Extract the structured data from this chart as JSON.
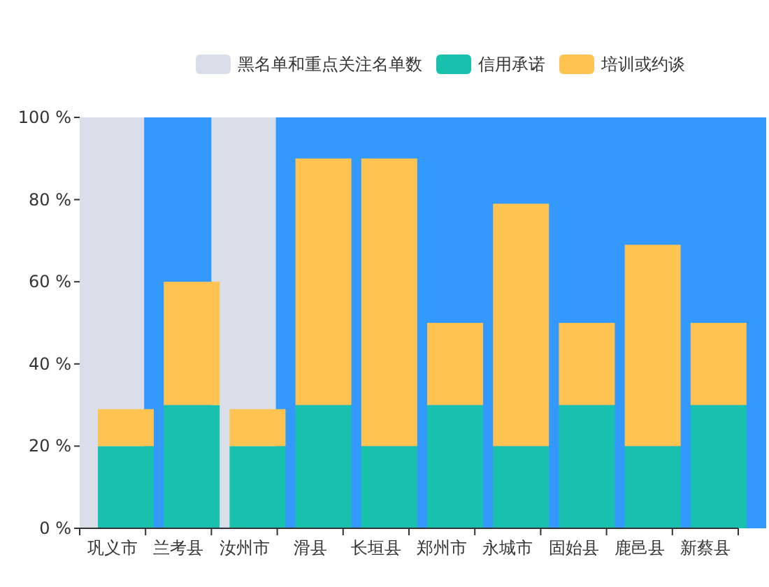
{
  "chart_data": [
    {
      "type": "bar",
      "legend": "top left",
      "tick_labels": false,
      "categories": [
        "巩义市",
        "兰考县",
        "汝州市",
        "滑县",
        "长垣县",
        "郑州市",
        "永城市",
        "固始县",
        "鹿邑县",
        "新蔡县"
      ],
      "series": [
        {
          "name": "黑名单和重点关注名单数",
          "color": "#d9dee8",
          "values": [
            100,
            null,
            100,
            null,
            null,
            null,
            null,
            null,
            null,
            null
          ]
        }
      ],
      "ylim": [
        0,
        100
      ]
    },
    {
      "type": "bar",
      "stacked": true,
      "legend": "top right",
      "categories": [
        "巩义市",
        "兰考县",
        "汝州市",
        "滑县",
        "长垣县",
        "郑州市",
        "永城市",
        "固始县",
        "鹿邑县",
        "新蔡县"
      ],
      "series": [
        {
          "name": "信用承诺",
          "color": "#17c1ad",
          "values": [
            20,
            30,
            20,
            30,
            20,
            30,
            20,
            30,
            20,
            30
          ]
        },
        {
          "name": "培训或约谈",
          "color": "#fec350",
          "values": [
            9,
            30,
            9,
            60,
            70,
            20,
            59,
            20,
            49,
            20
          ]
        }
      ],
      "ylim": [
        0,
        100
      ],
      "yticks": [
        {
          "value": 0,
          "label": "0 %"
        },
        {
          "value": 20,
          "label": "20 %"
        },
        {
          "value": 40,
          "label": "40 %"
        },
        {
          "value": 60,
          "label": "60 %"
        },
        {
          "value": 80,
          "label": "80 %"
        },
        {
          "value": 100,
          "label": "100 %"
        }
      ]
    }
  ]
}
